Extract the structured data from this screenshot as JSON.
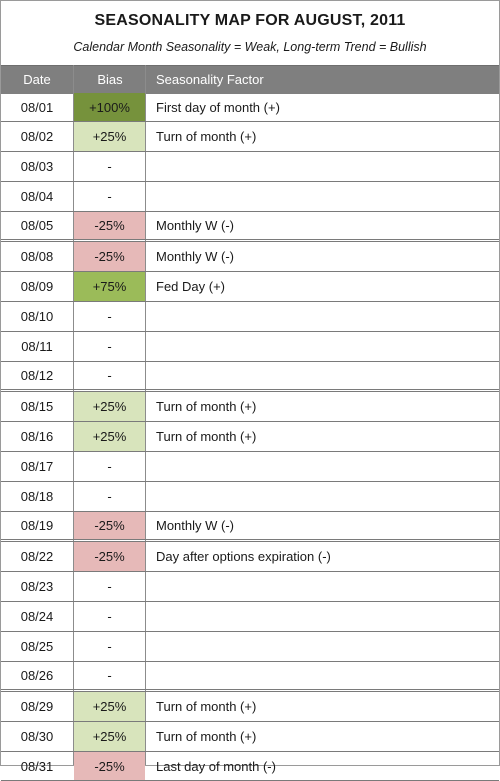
{
  "title": "SEASONALITY MAP FOR AUGUST, 2011",
  "subtitle": "Calendar Month Seasonality = Weak, Long-term Trend = Bullish",
  "columns": {
    "date": "Date",
    "bias": "Bias",
    "factor": "Seasonality Factor"
  },
  "rows": [
    {
      "date": "08/01",
      "bias": "+100%",
      "factor": "First day of month (+)",
      "tone": "pos-strong",
      "h": 28,
      "sep": false
    },
    {
      "date": "08/02",
      "bias": "+25%",
      "factor": "Turn of month (+)",
      "tone": "pos-light",
      "h": 29,
      "sep": false
    },
    {
      "date": "08/03",
      "bias": "-",
      "factor": "",
      "tone": "neutral",
      "h": 29,
      "sep": false
    },
    {
      "date": "08/04",
      "bias": "-",
      "factor": "",
      "tone": "neutral",
      "h": 29,
      "sep": false
    },
    {
      "date": "08/05",
      "bias": "-25%",
      "factor": "Monthly W (-)",
      "tone": "neg-light",
      "h": 29,
      "sep": true
    },
    {
      "date": "08/08",
      "bias": "-25%",
      "factor": "Monthly W (-)",
      "tone": "neg-light",
      "h": 29,
      "sep": false
    },
    {
      "date": "08/09",
      "bias": "+75%",
      "factor": "Fed Day (+)",
      "tone": "pos-mid",
      "h": 29,
      "sep": false
    },
    {
      "date": "08/10",
      "bias": "-",
      "factor": "",
      "tone": "neutral",
      "h": 29,
      "sep": false
    },
    {
      "date": "08/11",
      "bias": "-",
      "factor": "",
      "tone": "neutral",
      "h": 29,
      "sep": false
    },
    {
      "date": "08/12",
      "bias": "-",
      "factor": "",
      "tone": "neutral",
      "h": 29,
      "sep": true
    },
    {
      "date": "08/15",
      "bias": "+25%",
      "factor": "Turn of month (+)",
      "tone": "pos-light",
      "h": 29,
      "sep": false
    },
    {
      "date": "08/16",
      "bias": "+25%",
      "factor": "Turn of month (+)",
      "tone": "pos-light",
      "h": 29,
      "sep": false
    },
    {
      "date": "08/17",
      "bias": "-",
      "factor": "",
      "tone": "neutral",
      "h": 29,
      "sep": false
    },
    {
      "date": "08/18",
      "bias": "-",
      "factor": "",
      "tone": "neutral",
      "h": 29,
      "sep": false
    },
    {
      "date": "08/19",
      "bias": "-25%",
      "factor": "Monthly W (-)",
      "tone": "neg-light",
      "h": 29,
      "sep": true
    },
    {
      "date": "08/22",
      "bias": "-25%",
      "factor": "Day after options expiration (-)",
      "tone": "neg-light",
      "h": 29,
      "sep": false
    },
    {
      "date": "08/23",
      "bias": "-",
      "factor": "",
      "tone": "neutral",
      "h": 29,
      "sep": false
    },
    {
      "date": "08/24",
      "bias": "-",
      "factor": "",
      "tone": "neutral",
      "h": 29,
      "sep": false
    },
    {
      "date": "08/25",
      "bias": "-",
      "factor": "",
      "tone": "neutral",
      "h": 29,
      "sep": false
    },
    {
      "date": "08/26",
      "bias": "-",
      "factor": "",
      "tone": "neutral",
      "h": 29,
      "sep": true
    },
    {
      "date": "08/29",
      "bias": "+25%",
      "factor": "Turn of month (+)",
      "tone": "pos-light",
      "h": 29,
      "sep": false
    },
    {
      "date": "08/30",
      "bias": "+25%",
      "factor": "Turn of month (+)",
      "tone": "pos-light",
      "h": 29,
      "sep": false
    },
    {
      "date": "08/31",
      "bias": "-25%",
      "factor": "Last day of month (-)",
      "tone": "neg-light",
      "h": 28,
      "sep": false
    }
  ]
}
